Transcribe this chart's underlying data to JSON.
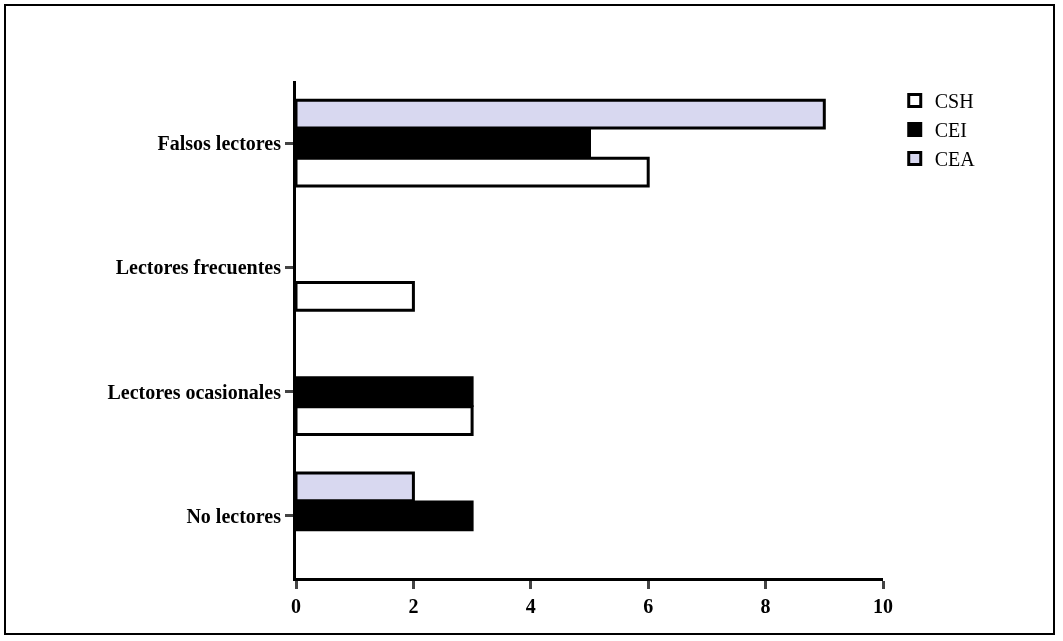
{
  "chart_data": {
    "type": "bar",
    "orientation": "horizontal",
    "categories": [
      "Falsos lectores",
      "Lectores frecuentes",
      "Lectores ocasionales",
      "No lectores"
    ],
    "series": [
      {
        "name": "CSH",
        "color": "#ffffff",
        "values": [
          6,
          2,
          3,
          null
        ]
      },
      {
        "name": "CEI",
        "color": "#000000",
        "values": [
          5,
          null,
          3,
          3
        ]
      },
      {
        "name": "CEA",
        "color": "#d8d8f0",
        "values": [
          9,
          null,
          null,
          2
        ]
      }
    ],
    "xlim": [
      0,
      10
    ],
    "xticks": [
      0,
      2,
      4,
      6,
      8,
      10
    ],
    "grid": false,
    "legend": "top right"
  }
}
